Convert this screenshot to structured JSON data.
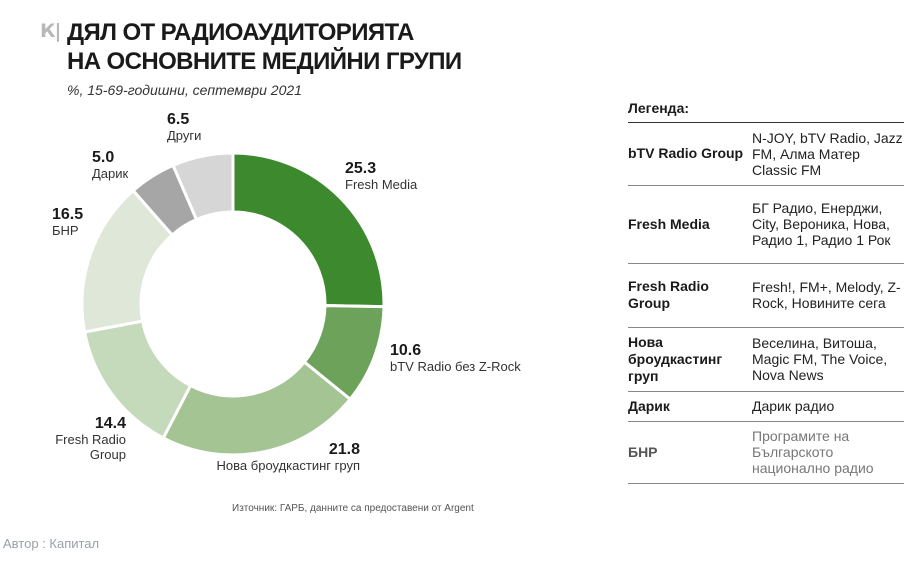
{
  "brand": {
    "logo_text": "К|"
  },
  "header": {
    "title_line1": "ДЯЛ ОТ РАДИОАУДИТОРИЯТА",
    "title_line2": "НА ОСНОВНИТЕ МЕДИЙНИ ГРУПИ",
    "subtitle": "%, 15-69-годишни, септември 2021"
  },
  "chart_data": {
    "type": "pie",
    "variant": "donut",
    "title": "Дял от радиоаудиторията на основните медийни групи",
    "subtitle": "%, 15-69-годишни, септември 2021",
    "unit": "%",
    "slices": [
      {
        "label": "Fresh Media",
        "value": 25.3,
        "value_text": "25.3",
        "color": "#3d8a2e"
      },
      {
        "label": "bTV Radio без Z-Rock",
        "value": 10.6,
        "value_text": "10.6",
        "color": "#6da25b"
      },
      {
        "label": "Нова броудкастинг груп",
        "value": 21.8,
        "value_text": "21.8",
        "color": "#a4c494"
      },
      {
        "label": "Fresh Radio Group",
        "value": 14.4,
        "value_text": "14.4",
        "color": "#c5d9bb"
      },
      {
        "label": "БНР",
        "value": 16.5,
        "value_text": "16.5",
        "color": "#dfe8d8"
      },
      {
        "label": "Дарик",
        "value": 5.0,
        "value_text": "5.0",
        "color": "#a6a6a6"
      },
      {
        "label": "Други",
        "value": 6.5,
        "value_text": "6.5",
        "color": "#d6d6d6"
      }
    ]
  },
  "legend": {
    "title": "Легенда:",
    "rows": [
      {
        "group": "bTV Radio Group",
        "desc": "N-JOY, bTV Radio, Jazz FM, Алма Матер Classic FM"
      },
      {
        "group": "Fresh Media",
        "desc": "БГ Радио, Енерджи, City, Вероника, Нова, Радио 1, Радио 1 Рок"
      },
      {
        "group": "Fresh Radio Group",
        "desc": "Fresh!, FM+, Melody, Z-Rock, Новините сега"
      },
      {
        "group": "Нова броудкастинг груп",
        "desc": "Веселина, Витоша, Magic FM, The Voice, Nova News"
      },
      {
        "group": "Дарик",
        "desc": "Дарик радио"
      },
      {
        "group": "БНР",
        "desc": "Програмите на Българското национално радио"
      }
    ]
  },
  "source": "Източник: ГАРБ, данните са предоставени от Argent",
  "author": "Автор : Капитал"
}
